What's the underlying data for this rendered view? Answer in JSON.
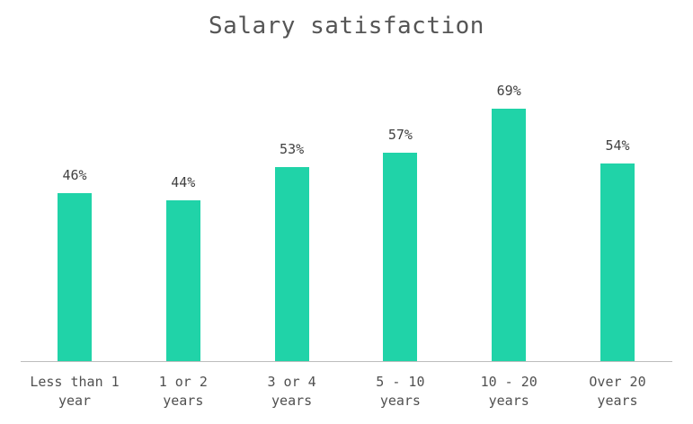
{
  "chart_data": {
    "type": "bar",
    "title": "Salary satisfaction",
    "xlabel": "",
    "ylabel": "",
    "categories": [
      "Less than 1 year",
      "1 or 2 years",
      "3 or 4 years",
      "5 - 10 years",
      "10 - 20 years",
      "Over 20 years"
    ],
    "category_lines": [
      [
        "Less than 1",
        "year"
      ],
      [
        "1 or 2",
        "years"
      ],
      [
        "3 or 4",
        "years"
      ],
      [
        "5 - 10",
        "years"
      ],
      [
        "10 - 20",
        "years"
      ],
      [
        "Over 20",
        "years"
      ]
    ],
    "values": [
      46,
      44,
      53,
      57,
      69,
      54
    ],
    "value_labels": [
      "46%",
      "44%",
      "53%",
      "57%",
      "69%",
      "54%"
    ],
    "unit": "%",
    "ylim": [
      0,
      100
    ],
    "grid": false,
    "legend": null,
    "bar_color": "#20d3a8"
  }
}
